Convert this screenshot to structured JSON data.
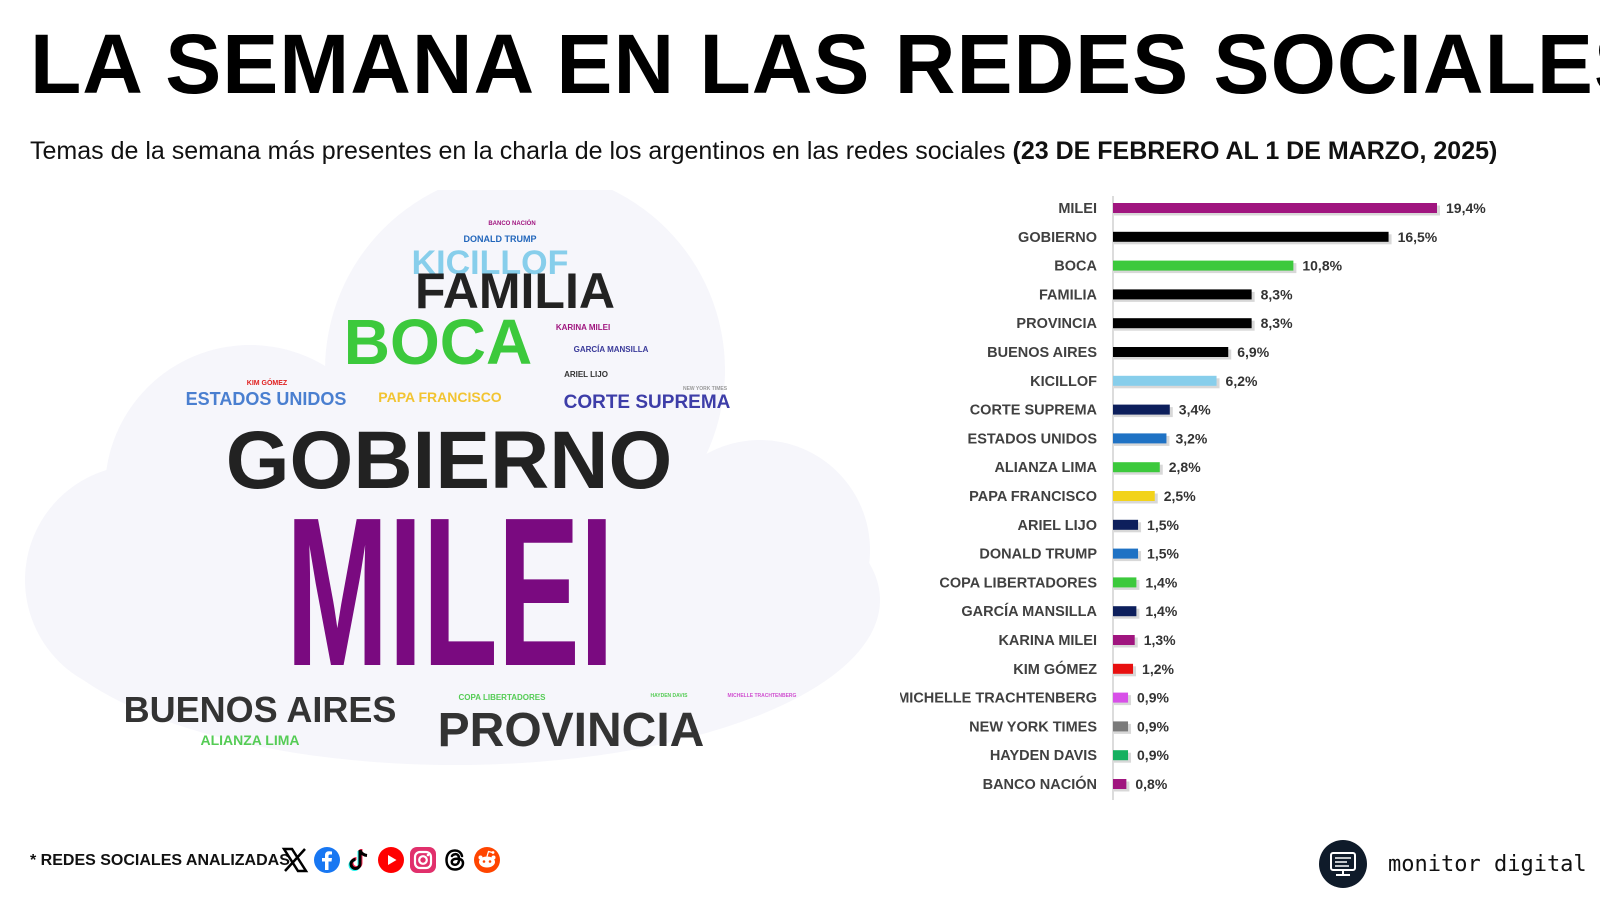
{
  "header": {
    "title": "LA SEMANA EN LAS REDES SOCIALES",
    "subtitle_main": "Temas de la semana más presentes en la charla de los argentinos en las redes sociales",
    "subtitle_dates": "(23 DE FEBRERO AL 1 DE MARZO, 2025)"
  },
  "wordcloud": {
    "words": [
      {
        "text": "BANCO NACIÓN",
        "color": "#a0157f"
      },
      {
        "text": "DONALD TRUMP",
        "color": "#2266bb"
      },
      {
        "text": "KICILLOF",
        "color": "#87ceeb"
      },
      {
        "text": "FAMILIA",
        "color": "#222222"
      },
      {
        "text": "KARINA MILEI",
        "color": "#a0157f"
      },
      {
        "text": "BOCA",
        "color": "#3cc93c"
      },
      {
        "text": "GARCÍA MANSILLA",
        "color": "#3a3a9a"
      },
      {
        "text": "ARIEL LIJO",
        "color": "#333333"
      },
      {
        "text": "KIM GÓMEZ",
        "color": "#e02020"
      },
      {
        "text": "NEW YORK TIMES",
        "color": "#999999"
      },
      {
        "text": "ESTADOS UNIDOS",
        "color": "#4a7fd0"
      },
      {
        "text": "PAPA FRANCISCO",
        "color": "#f2c431"
      },
      {
        "text": "CORTE SUPREMA",
        "color": "#3d3da8"
      },
      {
        "text": "GOBIERNO",
        "color": "#222222"
      },
      {
        "text": "MILEI",
        "color": "#7a0a80"
      },
      {
        "text": "BUENOS AIRES",
        "color": "#333333"
      },
      {
        "text": "COPA LIBERTADORES",
        "color": "#55cc55"
      },
      {
        "text": "HAYDEN DAVIS",
        "color": "#55cc55"
      },
      {
        "text": "MICHELLE TRACHTENBERG",
        "color": "#d050d0"
      },
      {
        "text": "PROVINCIA",
        "color": "#333333"
      },
      {
        "text": "ALIANZA LIMA",
        "color": "#55cc55"
      }
    ]
  },
  "chart_data": {
    "type": "bar",
    "orientation": "horizontal",
    "categories": [
      "MILEI",
      "GOBIERNO",
      "BOCA",
      "FAMILIA",
      "PROVINCIA",
      "BUENOS AIRES",
      "KICILLOF",
      "CORTE SUPREMA",
      "ESTADOS UNIDOS",
      "ALIANZA LIMA",
      "PAPA FRANCISCO",
      "ARIEL LIJO",
      "DONALD TRUMP",
      "COPA LIBERTADORES",
      "GARCÍA MANSILLA",
      "KARINA MILEI",
      "KIM GÓMEZ",
      "MICHELLE TRACHTENBERG",
      "NEW YORK TIMES",
      "HAYDEN DAVIS",
      "BANCO NACIÓN"
    ],
    "values": [
      19.4,
      16.5,
      10.8,
      8.3,
      8.3,
      6.9,
      6.2,
      3.4,
      3.2,
      2.8,
      2.5,
      1.5,
      1.5,
      1.4,
      1.4,
      1.3,
      1.2,
      0.9,
      0.9,
      0.9,
      0.8
    ],
    "value_labels": [
      "19,4%",
      "16,5%",
      "10,8%",
      "8,3%",
      "8,3%",
      "6,9%",
      "6,2%",
      "3,4%",
      "3,2%",
      "2,8%",
      "2,5%",
      "1,5%",
      "1,5%",
      "1,4%",
      "1,4%",
      "1,3%",
      "1,2%",
      "0,9%",
      "0,9%",
      "0,9%",
      "0,8%"
    ],
    "colors": [
      "#a0157f",
      "#000000",
      "#3cc93c",
      "#000000",
      "#000000",
      "#000000",
      "#87ceeb",
      "#0d1f5c",
      "#1f72c4",
      "#3cc93c",
      "#f2d31b",
      "#0d1f5c",
      "#1f72c4",
      "#3cc93c",
      "#0d1f5c",
      "#a0157f",
      "#e81010",
      "#d850e8",
      "#7a7a7a",
      "#16b060",
      "#a0157f"
    ],
    "title": "",
    "xlabel": "",
    "ylabel": "",
    "xlim": [
      0,
      19.4
    ],
    "grid": false,
    "legend": "none"
  },
  "footer": {
    "networks_label": "* REDES SOCIALES ANALIZADAS",
    "networks": [
      "x-icon",
      "facebook-icon",
      "tiktok-icon",
      "youtube-icon",
      "instagram-icon",
      "threads-icon",
      "reddit-icon"
    ],
    "brand": "monitor digital"
  }
}
